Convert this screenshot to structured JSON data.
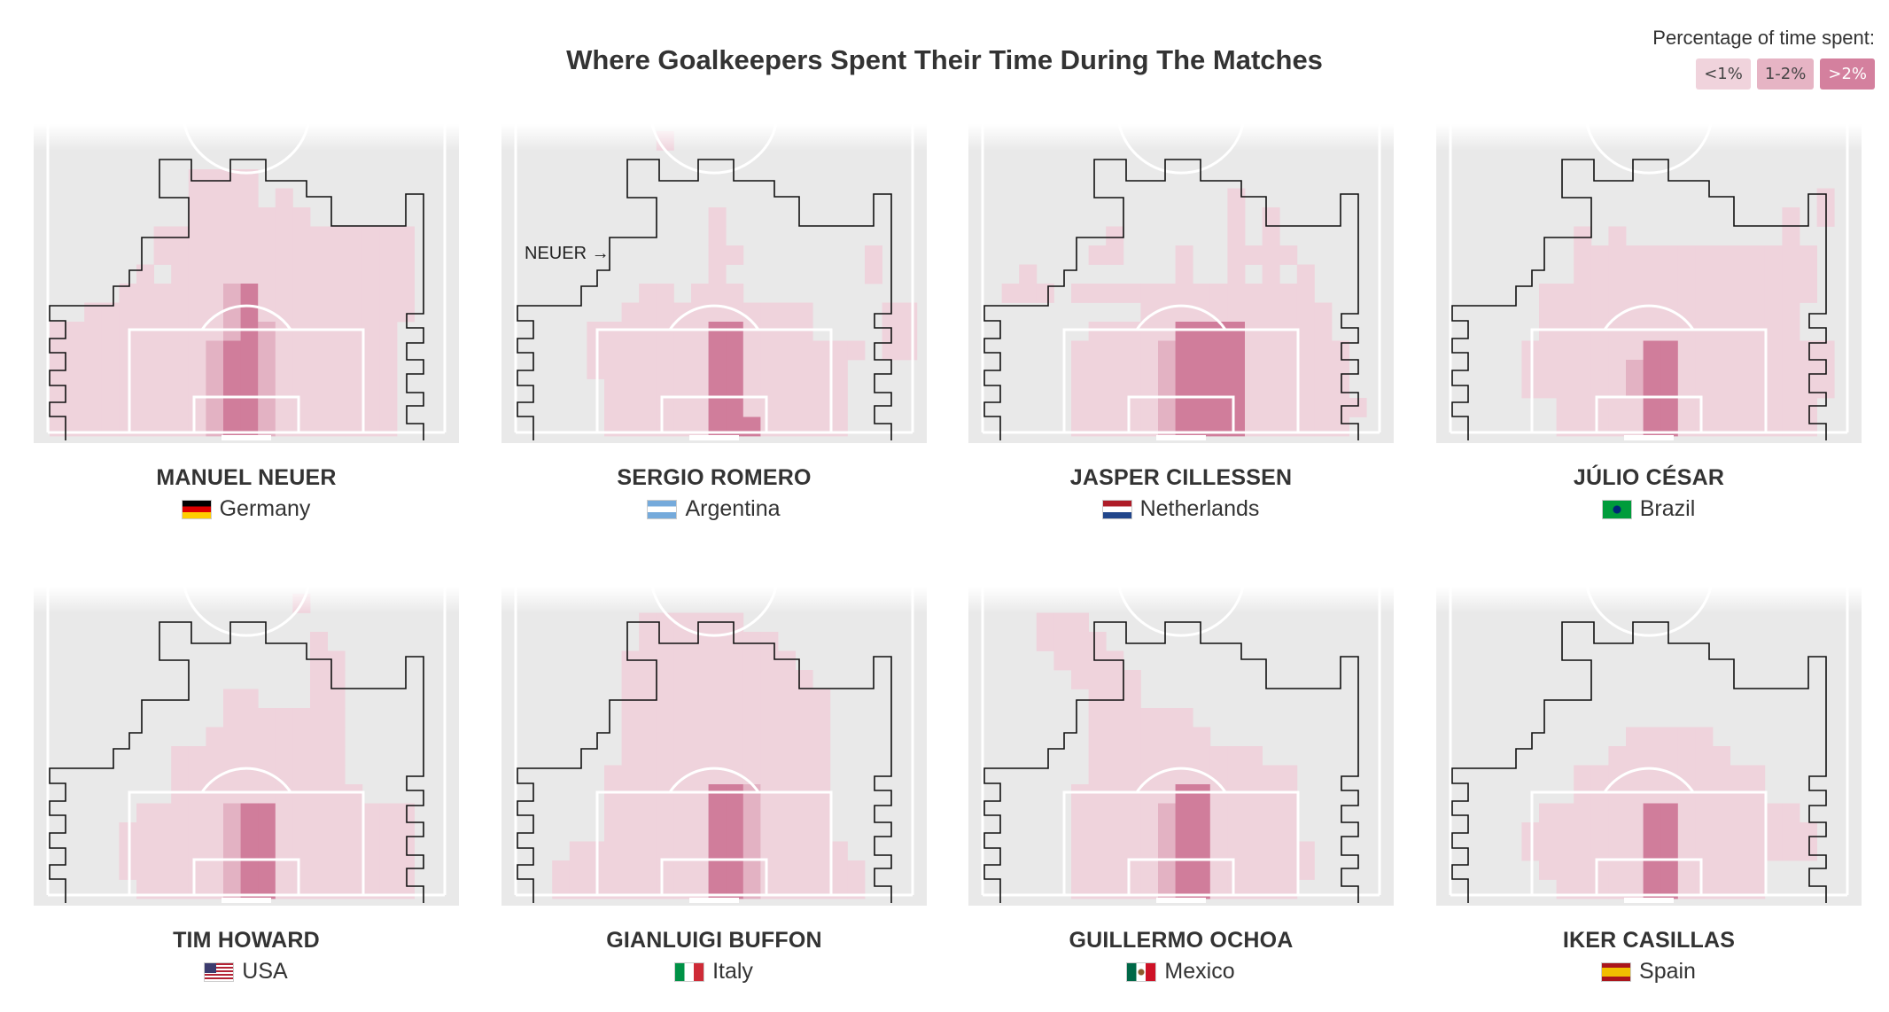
{
  "header": {
    "title": "Where Goalkeepers Spent Their Time During The Matches"
  },
  "legend": {
    "title": "Percentage of time spent:",
    "items": [
      {
        "label": "<1%",
        "color": "#f0d3dc"
      },
      {
        "label": "1-2%",
        "color": "#e6b4c4"
      },
      {
        "label": ">2%",
        "color": "#d4809e"
      }
    ]
  },
  "colors": {
    "pitch": "#e9e9e9",
    "lines": "#ffffff",
    "outline": "#111111",
    "low": "#efd3dc",
    "mid": "#e3b2c3",
    "high": "#d07d9b"
  },
  "annotation": {
    "label": "NEUER →"
  },
  "chart_data": {
    "type": "heatmap",
    "title": "Where Goalkeepers Spent Their Time During The Matches",
    "legend_placement": "top-right",
    "grid_note": "cells are a 23 x 16 grid over the defensive end of the pitch; row 0 is farthest from goal; values 0 = none, 1 = <1%, 2 = 1-2%, 3 = >2%",
    "players": [
      {
        "name": "MANUEL NEUER",
        "country": "Germany",
        "flag": "germany",
        "grid": [
          "00000000000000000000000",
          "00000000000000000000000",
          "00000000111100000000000",
          "00000000111101000000000",
          "00000000111111100000000",
          "00000011111111111111100",
          "00000011111111111111100",
          "00000101111111111111100",
          "00001111112311111111100",
          "00111111112311111111100",
          "11111111112321111111000",
          "11111111123321111111000",
          "11111111123321111111000",
          "11111111123321111111000",
          "11111111123321111111000",
          "11111111123321111111000"
        ]
      },
      {
        "name": "SERGIO ROMERO",
        "country": "Argentina",
        "flag": "argentina",
        "grid": [
          "00000000100000000000000",
          "00000000000000000000000",
          "00000000000000000000000",
          "00000000000000000000000",
          "00000000000100000000000",
          "00000000000100000000000",
          "00000000000110000000100",
          "00000000000100000000100",
          "00000001101110000000000",
          "00000011111111111000011",
          "00001111111331111000011",
          "00001111111331111111011",
          "00001111111331111110000",
          "00000111111331111110000",
          "00000111111331111110000",
          "00000111111333111110000"
        ]
      },
      {
        "name": "JASPER CILLESSEN",
        "country": "Netherlands",
        "flag": "netherlands",
        "grid": [
          "00000000000000000000000",
          "00000000000000000000000",
          "00000000000000000000000",
          "00000000000000100000000",
          "00000000000000101000000",
          "00000001000000101000000",
          "00000011000100111100000",
          "00100000000100101010000",
          "01110111111111111110000",
          "00000000011111111111000",
          "00000011111333311111000",
          "00000111112333311111100",
          "00000111112333311111100",
          "00000111112333311111100",
          "00000111112333311111110",
          "00000111112333311111100"
        ]
      },
      {
        "name": "JÚLIO CÉSAR",
        "country": "Brazil",
        "flag": "brazil",
        "grid": [
          "00000000000000000000000",
          "00000000000000000000000",
          "00000000000000000000000",
          "00000000000000000000010",
          "00000000000000000001010",
          "00000001010000000001000",
          "00000001111111111111100",
          "00000001111111111111100",
          "00000111111111111111100",
          "00000111111111111111000",
          "00000111111111111111000",
          "00001111111331111111110",
          "00001111112331111111110",
          "00001111112331111111110",
          "00000011111331111111100",
          "00000011111331111111100"
        ]
      },
      {
        "name": "TIM HOWARD",
        "country": "USA",
        "flag": "usa",
        "grid": [
          "00000000000000100000000",
          "00000000000000000000000",
          "00000000000000010000000",
          "00000000000000011000000",
          "00000000000000011000000",
          "00000000001100011000000",
          "00000000001111111000000",
          "00000000011111111000000",
          "00000001111111111000000",
          "00000001111111111000000",
          "00000001111111111100000",
          "00000111112331111111100",
          "00001111112331111111100",
          "00001111112331111111100",
          "00001111112331111111100",
          "00000111112331111111100"
        ]
      },
      {
        "name": "GIANLUIGI BUFFON",
        "country": "Italy",
        "flag": "italy",
        "grid": [
          "00000000000000000000000",
          "00000001111110000000000",
          "00000001111111100000000",
          "00000011111111110000000",
          "00000011111111111000000",
          "00000011111111111100000",
          "00000011111111111100000",
          "00000011111111111100000",
          "00000011111111111100000",
          "00000111111111111100000",
          "00000111111332111100000",
          "00000111111332111100000",
          "00000111111332111100000",
          "00011111111332111110000",
          "00111111111332111111000",
          "00111111111332111111000"
        ]
      },
      {
        "name": "GUILLERMO OCHOA",
        "country": "Mexico",
        "flag": "mexico",
        "grid": [
          "00000000000000000000000",
          "00011100000000000000000",
          "00011110000000000000000",
          "00001111000000000000000",
          "00000111100000000000000",
          "00000011100000000000000",
          "00000011111100000000000",
          "00000011111110000000000",
          "00000011111111110000000",
          "00000011111111111100000",
          "00000111111331111100000",
          "00000111112331111100000",
          "00000111112331111100000",
          "00000111112331111110000",
          "00000111112331111110000",
          "00000111112331111100000"
        ]
      },
      {
        "name": "IKER CASILLAS",
        "country": "Spain",
        "flag": "spain",
        "grid": [
          "00000000000000000000000",
          "00000000000000000000000",
          "00000000000000000000000",
          "00000000000000000000000",
          "00000000000000000000000",
          "00000000000000000000000",
          "00000000000000000000000",
          "00000000001111100000000",
          "00000000011111110000000",
          "00000001111111111100000",
          "00000001111111111100000",
          "00000111111331111111000",
          "00001111111331111111100",
          "00001111111331111111100",
          "00000111111331111100000",
          "00000011111331111100000"
        ]
      }
    ]
  }
}
